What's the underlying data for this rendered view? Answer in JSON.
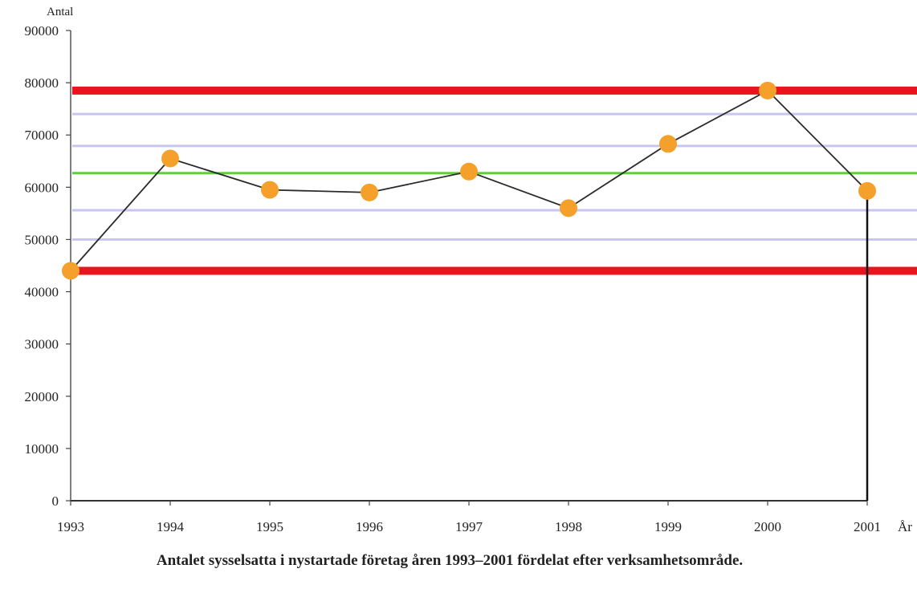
{
  "chart_data": {
    "type": "line",
    "title": "",
    "caption": "Antalet sysselsatta i nystartade företag åren 1993–2001 fördelat efter verksamhetsområde.",
    "ylabel": "Antal",
    "xlabel": "År",
    "ylim": [
      0,
      90000
    ],
    "y_ticks": [
      0,
      10000,
      20000,
      30000,
      40000,
      50000,
      60000,
      70000,
      80000,
      90000
    ],
    "categories": [
      "1993",
      "1994",
      "1995",
      "1996",
      "1997",
      "1998",
      "1999",
      "2000",
      "2001"
    ],
    "series": [
      {
        "values": [
          44000,
          65500,
          59500,
          59000,
          63000,
          56000,
          68300,
          78500,
          59300
        ]
      }
    ],
    "reference_lines": [
      {
        "value": 78500,
        "color": "#e8141e"
      },
      {
        "value": 74000,
        "color": "#c6c6ee"
      },
      {
        "value": 67900,
        "color": "#c6c6ee"
      },
      {
        "value": 62700,
        "color": "#5ecf3c"
      },
      {
        "value": 55600,
        "color": "#c6c6ee"
      },
      {
        "value": 50000,
        "color": "#c6c6ee"
      },
      {
        "value": 44000,
        "color": "#e8141e"
      }
    ],
    "marker_color": "#f5a02a",
    "line_color": "#2a2a2a",
    "grid": false
  }
}
